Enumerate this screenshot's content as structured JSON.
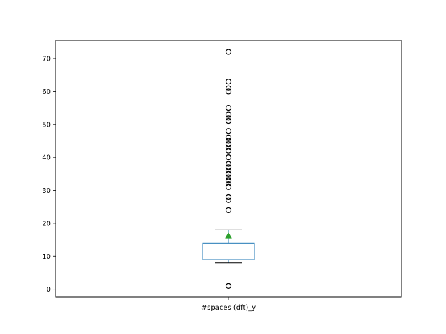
{
  "chart_data": {
    "type": "box",
    "title": "",
    "xlabel": "",
    "ylabel": "",
    "categories": [
      "#spaces (dft)_y"
    ],
    "ylim": [
      -2.4,
      75.5
    ],
    "yticks": [
      0,
      10,
      20,
      30,
      40,
      50,
      60,
      70
    ],
    "grid": false,
    "legend": "none",
    "boxes": [
      {
        "name": "#spaces (dft)_y",
        "whisker_low": 8,
        "q1": 9,
        "median": 11,
        "q3": 14,
        "whisker_high": 18,
        "mean": 16.2,
        "outliers": [
          1,
          24,
          27,
          28,
          31,
          32,
          33,
          34,
          35,
          36,
          37,
          38,
          40,
          42,
          43,
          44,
          45,
          46,
          48,
          51,
          52,
          53,
          55,
          60,
          61,
          63,
          72
        ]
      }
    ],
    "colors": {
      "box": "#1f77b4",
      "median": "#2ca02c",
      "mean_marker": "#2ca02c",
      "whisker": "#000000",
      "outlier": "#000000"
    }
  }
}
